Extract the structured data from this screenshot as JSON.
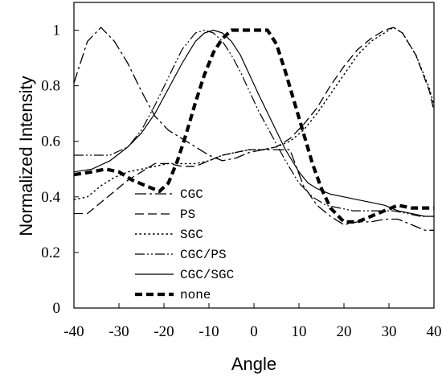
{
  "chart_data": {
    "type": "line",
    "title": "",
    "xlabel": "Angle",
    "ylabel": "Normalized Intensity",
    "xlim": [
      -40,
      40
    ],
    "ylim": [
      0,
      1.1
    ],
    "xticks": [
      -40,
      -30,
      -20,
      -10,
      0,
      10,
      20,
      30,
      40
    ],
    "yticks": [
      0,
      0.2,
      0.4,
      0.6,
      0.8,
      1
    ],
    "grid": false,
    "legend_position": "lower-center",
    "series": [
      {
        "name": "CGC",
        "style": "dashdot",
        "x": [
          -40,
          -37,
          -34,
          -31,
          -28,
          -25,
          -22,
          -19,
          -16,
          -13,
          -10,
          -7,
          -4,
          -1,
          2,
          5,
          8,
          11,
          14,
          17,
          20,
          23,
          26,
          29,
          32,
          35,
          38,
          40
        ],
        "y": [
          0.81,
          0.96,
          1.01,
          0.96,
          0.88,
          0.78,
          0.69,
          0.64,
          0.61,
          0.58,
          0.55,
          0.53,
          0.54,
          0.56,
          0.57,
          0.57,
          0.57,
          0.44,
          0.37,
          0.33,
          0.3,
          0.31,
          0.31,
          0.32,
          0.32,
          0.3,
          0.28,
          0.28
        ]
      },
      {
        "name": "PS",
        "style": "dashed",
        "x": [
          -40,
          -37,
          -34,
          -31,
          -28,
          -25,
          -22,
          -19,
          -16,
          -13,
          -10,
          -7,
          -4,
          -1,
          2,
          5,
          8,
          11,
          14,
          17,
          20,
          23,
          26,
          29,
          31,
          33,
          36,
          39,
          40
        ],
        "y": [
          0.34,
          0.34,
          0.38,
          0.42,
          0.46,
          0.49,
          0.52,
          0.52,
          0.51,
          0.51,
          0.53,
          0.55,
          0.56,
          0.57,
          0.57,
          0.58,
          0.61,
          0.66,
          0.72,
          0.8,
          0.87,
          0.93,
          0.97,
          1.0,
          1.01,
          0.99,
          0.91,
          0.78,
          0.71
        ]
      },
      {
        "name": "SGC",
        "style": "dotted",
        "x": [
          -40,
          -37,
          -34,
          -31,
          -28,
          -25,
          -22,
          -19,
          -16,
          -13,
          -10,
          -7,
          -4,
          -1,
          2,
          5,
          8,
          11,
          14,
          17,
          20,
          23,
          26,
          29,
          31,
          33,
          36,
          39,
          40
        ],
        "y": [
          0.39,
          0.4,
          0.44,
          0.47,
          0.49,
          0.5,
          0.51,
          0.52,
          0.52,
          0.52,
          0.53,
          0.55,
          0.56,
          0.57,
          0.57,
          0.58,
          0.6,
          0.64,
          0.7,
          0.77,
          0.84,
          0.91,
          0.96,
          0.99,
          1.01,
          0.99,
          0.91,
          0.79,
          0.73
        ]
      },
      {
        "name": "CGC/PS",
        "style": "dashdotdot",
        "x": [
          -40,
          -36,
          -32,
          -28,
          -25,
          -22,
          -19,
          -16,
          -13,
          -11,
          -9,
          -7,
          -5,
          -3,
          -1,
          1,
          4,
          7,
          10,
          13,
          16,
          19,
          22,
          25,
          28,
          31,
          34,
          37,
          40
        ],
        "y": [
          0.55,
          0.55,
          0.55,
          0.58,
          0.64,
          0.73,
          0.83,
          0.93,
          0.99,
          1.0,
          0.99,
          0.96,
          0.91,
          0.85,
          0.78,
          0.71,
          0.62,
          0.53,
          0.45,
          0.4,
          0.37,
          0.36,
          0.35,
          0.35,
          0.35,
          0.35,
          0.34,
          0.33,
          0.33
        ]
      },
      {
        "name": "CGC/SGC",
        "style": "solid",
        "x": [
          -40,
          -36,
          -32,
          -28,
          -25,
          -22,
          -19,
          -16,
          -13,
          -11,
          -9,
          -7,
          -5,
          -3,
          -1,
          1,
          4,
          7,
          10,
          12,
          14,
          17,
          20,
          23,
          26,
          29,
          32,
          35,
          38,
          40
        ],
        "y": [
          0.49,
          0.5,
          0.53,
          0.58,
          0.63,
          0.7,
          0.79,
          0.88,
          0.96,
          0.99,
          1.0,
          0.99,
          0.96,
          0.91,
          0.84,
          0.77,
          0.67,
          0.57,
          0.49,
          0.45,
          0.43,
          0.41,
          0.4,
          0.39,
          0.38,
          0.37,
          0.35,
          0.34,
          0.33,
          0.33
        ]
      },
      {
        "name": "none",
        "style": "thick-dashed",
        "x": [
          -40,
          -36,
          -33,
          -30,
          -27,
          -24,
          -21,
          -19,
          -17,
          -15,
          -13,
          -11,
          -9,
          -7,
          -5,
          -3,
          -1,
          1,
          3,
          5,
          7,
          9,
          11,
          13,
          15,
          17,
          20,
          23,
          26,
          29,
          32,
          35,
          38,
          40
        ],
        "y": [
          0.48,
          0.49,
          0.5,
          0.49,
          0.46,
          0.44,
          0.42,
          0.45,
          0.53,
          0.63,
          0.74,
          0.84,
          0.92,
          0.97,
          1.0,
          1.0,
          1.0,
          1.0,
          1.0,
          0.95,
          0.85,
          0.74,
          0.63,
          0.52,
          0.43,
          0.36,
          0.31,
          0.31,
          0.33,
          0.35,
          0.37,
          0.36,
          0.36,
          0.36
        ]
      }
    ]
  }
}
